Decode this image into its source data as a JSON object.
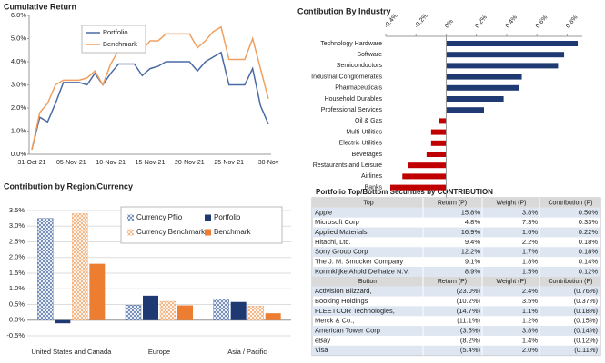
{
  "chart_data": [
    {
      "type": "line",
      "title": "Cumulative Return",
      "categories": [
        "31-Oct-21",
        null,
        null,
        null,
        null,
        "05-Nov-21",
        null,
        null,
        null,
        null,
        "10-Nov-21",
        null,
        null,
        null,
        null,
        "15-Nov-21",
        null,
        null,
        null,
        null,
        "20-Nov-21",
        null,
        null,
        null,
        null,
        "25-Nov-21",
        null,
        null,
        null,
        null,
        "30-Nov"
      ],
      "series": [
        {
          "name": "Portfolio",
          "color": "#4a6aa5",
          "values": [
            0.2,
            1.6,
            1.4,
            2.2,
            3.1,
            3.1,
            3.1,
            3.0,
            3.5,
            3.0,
            3.5,
            3.9,
            3.9,
            3.9,
            3.4,
            3.7,
            3.8,
            4.0,
            4.0,
            4.0,
            4.0,
            3.6,
            4.0,
            4.2,
            4.4,
            3.0,
            3.0,
            3.0,
            3.7,
            2.1,
            1.3
          ]
        },
        {
          "name": "Benchmark",
          "color": "#f0a060",
          "values": [
            0.2,
            1.8,
            2.2,
            3.0,
            3.2,
            3.2,
            3.2,
            3.3,
            3.6,
            3.0,
            3.9,
            4.5,
            4.5,
            4.5,
            4.5,
            4.9,
            4.9,
            5.2,
            5.2,
            5.2,
            5.2,
            4.6,
            4.9,
            5.3,
            5.5,
            4.1,
            4.1,
            4.1,
            5.0,
            3.7,
            2.4
          ]
        }
      ],
      "ylim": [
        0,
        6
      ],
      "yticks": [
        {
          "value": 0,
          "label": "0.0%"
        },
        {
          "value": 1,
          "label": "1.0%"
        },
        {
          "value": 2,
          "label": "2.0%"
        },
        {
          "value": 3,
          "label": "3.0%"
        },
        {
          "value": 4,
          "label": "4.0%"
        },
        {
          "value": 5,
          "label": "5.0%"
        },
        {
          "value": 6,
          "label": "6.0%"
        }
      ],
      "legend": "upper left",
      "grid": false
    },
    {
      "type": "barh",
      "title": "Contibution By Industry",
      "categories": [
        "Technology Hardware",
        "Software",
        "Semiconductors",
        "Industrial Conglomerates",
        "Pharmaceuticals",
        "Household Durables",
        "Professional Services",
        "Oil & Gas",
        "Multi-Utilities",
        "Electric Utilities",
        "Beverages",
        "Restaurants and Leisure",
        "Airlines",
        "Banks"
      ],
      "values": [
        0.87,
        0.78,
        0.74,
        0.5,
        0.48,
        0.38,
        0.25,
        -0.05,
        -0.1,
        -0.1,
        -0.13,
        -0.25,
        -0.29,
        -0.37
      ],
      "color": "#1f3a73",
      "negative_color": "#c00000",
      "xlim": [
        -0.4,
        0.9
      ],
      "xticks": [
        {
          "value": -0.4,
          "label": "-0.4%"
        },
        {
          "value": -0.2,
          "label": "-0.2%"
        },
        {
          "value": 0,
          "label": "0%"
        },
        {
          "value": 0.2,
          "label": "0.2%"
        },
        {
          "value": 0.4,
          "label": "0.4%"
        },
        {
          "value": 0.6,
          "label": "0.6%"
        },
        {
          "value": 0.8,
          "label": "0.8%"
        }
      ]
    },
    {
      "type": "grouped_bar",
      "title": "Contribution by Region/Currency",
      "categories": [
        "United States and Canada",
        "Europe",
        "Asia / Pacific"
      ],
      "series": [
        {
          "name": "Currency Pflio",
          "color": "#4a6aa5",
          "pattern": "hatch",
          "values": [
            3.25,
            0.48,
            0.68
          ]
        },
        {
          "name": "Portfolio",
          "color": "#1f3a73",
          "values": [
            -0.1,
            0.78,
            0.58
          ]
        },
        {
          "name": "Currency Benchmark",
          "color": "#f0a060",
          "pattern": "hatch",
          "values": [
            3.4,
            0.6,
            0.45
          ]
        },
        {
          "name": "Benchmark",
          "color": "#ed7d31",
          "values": [
            1.8,
            0.47,
            0.22
          ]
        }
      ],
      "ylim": [
        -0.5,
        3.5
      ],
      "yticks": [
        {
          "value": -0.5,
          "label": "-0.5%"
        },
        {
          "value": 0,
          "label": "0.0%"
        },
        {
          "value": 0.5,
          "label": "0.5%"
        },
        {
          "value": 1,
          "label": "1.0%"
        },
        {
          "value": 1.5,
          "label": "1.5%"
        },
        {
          "value": 2,
          "label": "2.0%"
        },
        {
          "value": 2.5,
          "label": "2.5%"
        },
        {
          "value": 3,
          "label": "3.0%"
        },
        {
          "value": 3.5,
          "label": "3.5%"
        }
      ],
      "grid": true,
      "legend": "upper right"
    }
  ],
  "table": {
    "title": "Portfolio Top/Bottom Securities by CONTRIBUTION",
    "top": {
      "header": [
        "Top",
        "Return (P)",
        "Weight (P)",
        "Contribution (P)"
      ],
      "rows": [
        [
          "Apple",
          "15.8%",
          "3.8%",
          "0.50%"
        ],
        [
          "Microsoft Corp",
          "4.8%",
          "7.3%",
          "0.33%"
        ],
        [
          "Applied Materials,",
          "16.9%",
          "1.6%",
          "0.22%"
        ],
        [
          "Hitachi, Ltd.",
          "9.4%",
          "2.2%",
          "0.18%"
        ],
        [
          "Sony Group Corp",
          "12.2%",
          "1.7%",
          "0.18%"
        ],
        [
          "The J. M. Smucker Company",
          "9.1%",
          "1.8%",
          "0.14%"
        ],
        [
          "Koninklijke Ahold Delhaize N.V.",
          "8.9%",
          "1.5%",
          "0.12%"
        ]
      ]
    },
    "bottom": {
      "header": [
        "Bottom",
        "Return (P)",
        "Weight (P)",
        "Contribution (P)"
      ],
      "rows": [
        [
          "Activision Blizzard,",
          "(23.0%)",
          "2.4%",
          "(0.76%)"
        ],
        [
          "Booking Holdings",
          "(10.2%)",
          "3.5%",
          "(0.37%)"
        ],
        [
          "FLEETCOR Technologies,",
          "(14.7%)",
          "1.1%",
          "(0.18%)"
        ],
        [
          "Merck & Co.,",
          "(11.1%)",
          "1.2%",
          "(0.15%)"
        ],
        [
          "American Tower Corp",
          "(3.5%)",
          "3.8%",
          "(0.14%)"
        ],
        [
          "eBay",
          "(8.2%)",
          "1.4%",
          "(0.12%)"
        ],
        [
          "Visa",
          "(5.4%)",
          "2.0%",
          "(0.11%)"
        ]
      ]
    }
  }
}
